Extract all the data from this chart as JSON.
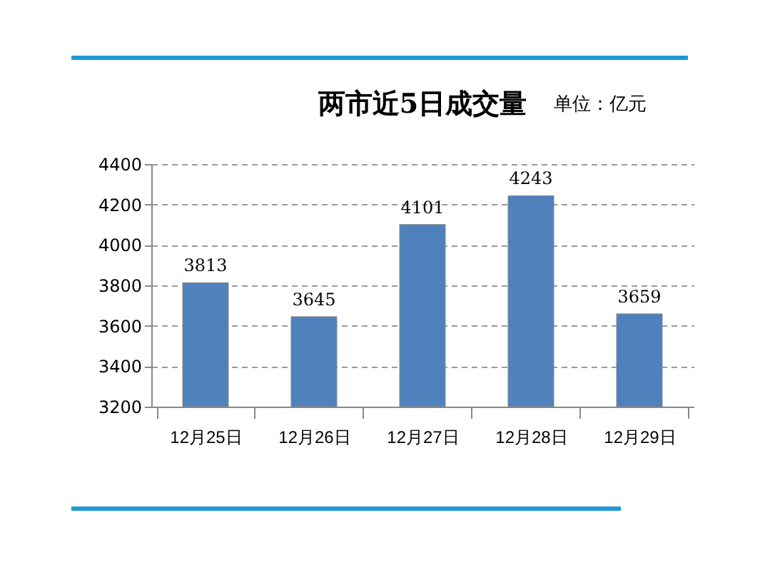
{
  "chart_data": {
    "type": "bar",
    "title": "两市近5日成交量",
    "annotations": [
      "单位：亿元"
    ],
    "categories": [
      "12月25日",
      "12月26日",
      "12月27日",
      "12月28日",
      "12月29日"
    ],
    "values": [
      3813,
      3645,
      4101,
      4243,
      3659
    ],
    "color": "#4f81bd",
    "ylim": [
      3200,
      4400
    ],
    "yticks": [
      3200,
      3400,
      3600,
      3800,
      4000,
      4200,
      4400
    ],
    "grid": "y",
    "data_labels": true
  }
}
